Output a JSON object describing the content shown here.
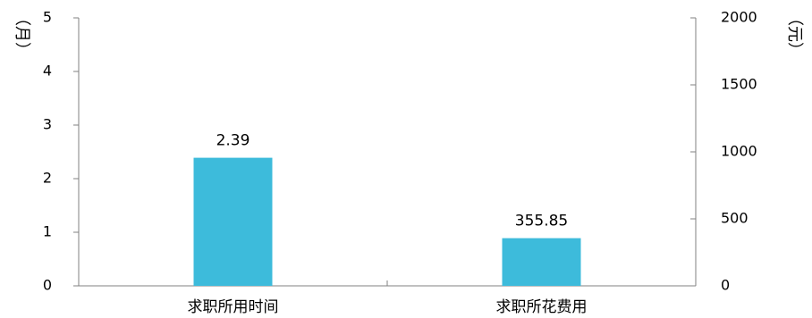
{
  "chart_data": {
    "type": "bar",
    "categories": [
      "求职所用时间",
      "求职所花费用"
    ],
    "series": [
      {
        "axis": "left",
        "values": [
          2.39,
          null
        ],
        "data_labels": [
          "2.39",
          ""
        ]
      },
      {
        "axis": "right",
        "values": [
          null,
          355.85
        ],
        "data_labels": [
          "",
          "355.85"
        ]
      }
    ],
    "left_axis": {
      "unit": "（月）",
      "ylim": [
        0,
        5
      ],
      "ticks": [
        "0",
        "1",
        "2",
        "3",
        "4",
        "5"
      ]
    },
    "right_axis": {
      "unit": "（元）",
      "ylim": [
        0,
        2000
      ],
      "ticks": [
        "0",
        "500",
        "1000",
        "1500",
        "2000"
      ]
    },
    "bar_color": "#3DBBDB",
    "grid": false,
    "legend": "none"
  }
}
